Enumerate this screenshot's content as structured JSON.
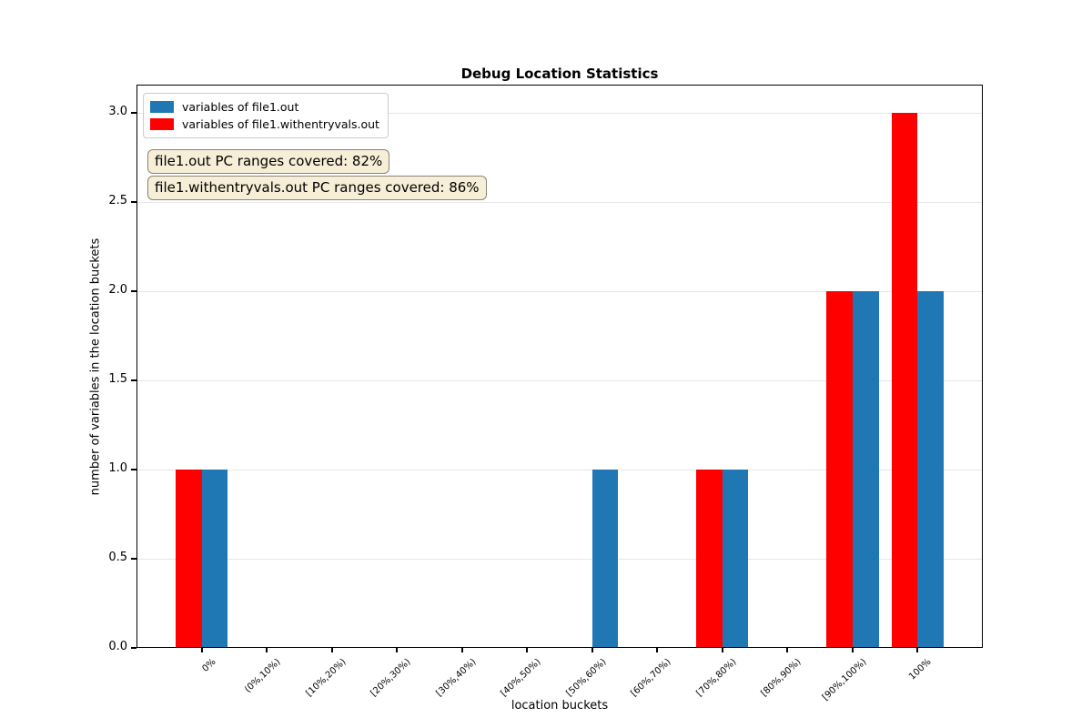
{
  "chart_data": {
    "type": "bar",
    "title": "Debug Location Statistics",
    "xlabel": "location buckets",
    "ylabel": "number of variables in the location buckets",
    "categories": [
      "0%",
      "(0%,10%)",
      "[10%,20%)",
      "[20%,30%)",
      "[30%,40%)",
      "[40%,50%)",
      "[50%,60%)",
      "[60%,70%)",
      "[70%,80%)",
      "[80%,90%)",
      "[90%,100%)",
      "100%"
    ],
    "series": [
      {
        "name": "variables of file1.out",
        "color": "#1f77b4",
        "bar_position": "right",
        "values": [
          1,
          0,
          0,
          0,
          0,
          0,
          1,
          0,
          1,
          0,
          2,
          2
        ]
      },
      {
        "name": "variables of file1.withentryvals.out",
        "color": "#ff0000",
        "bar_position": "left",
        "values": [
          1,
          0,
          0,
          0,
          0,
          0,
          0,
          0,
          1,
          0,
          2,
          3
        ]
      }
    ],
    "ylim": [
      0,
      3.16
    ],
    "yticks": [
      0.0,
      0.5,
      1.0,
      1.5,
      2.0,
      2.5,
      3.0
    ],
    "ytick_labels": [
      "0.0",
      "0.5",
      "1.0",
      "1.5",
      "2.0",
      "2.5",
      "3.0"
    ],
    "bar_width_units": 0.4,
    "grid": "horizontal",
    "gridline_color": "#e6e6e6",
    "legend_position": "upper-left",
    "annotations": [
      {
        "text": "file1.out PC ranges covered: 82%"
      },
      {
        "text": "file1.withentryvals.out PC ranges covered: 86%"
      }
    ],
    "annotation_style": {
      "background": "#f7eed8",
      "border": "#8a8577"
    }
  }
}
